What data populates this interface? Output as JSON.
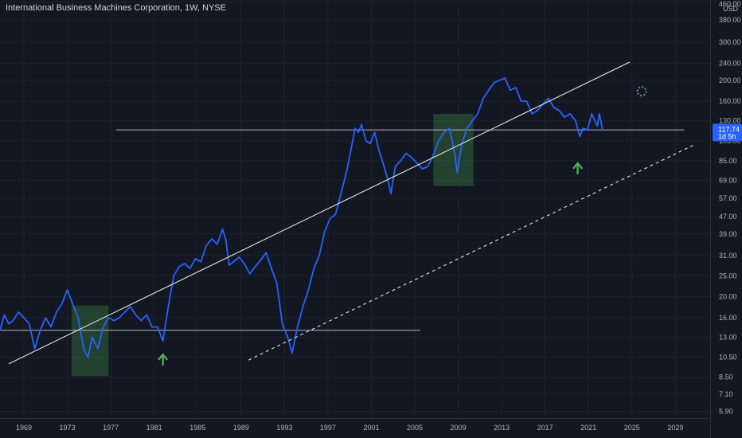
{
  "title": "International Business Machines Corporation, 1W, NYSE",
  "chart_data": {
    "type": "line",
    "scale": "log",
    "currency": "USD",
    "last_price": "117.74",
    "countdown": "1d 5h",
    "y_ticks": [
      "460.00",
      "380.00",
      "300.00",
      "240.00",
      "200.00",
      "160.00",
      "130.00",
      "105.00",
      "85.00",
      "69.00",
      "57.00",
      "47.00",
      "39.00",
      "31.00",
      "25.00",
      "20.00",
      "16.00",
      "13.00",
      "10.50",
      "8.50",
      "7.10",
      "5.90"
    ],
    "x_ticks": [
      "1969",
      "1973",
      "1977",
      "1981",
      "1985",
      "1989",
      "1993",
      "1997",
      "2001",
      "2005",
      "2009",
      "2013",
      "2017",
      "2021",
      "2025",
      "2029"
    ],
    "ylim": [
      5.5,
      470
    ],
    "xlim": [
      1966.8,
      2032.2
    ],
    "grid": true,
    "series": [
      {
        "color": "#2962ff",
        "x": [
          1966.8,
          1967.2,
          1967.6,
          1968.0,
          1968.5,
          1969.0,
          1969.5,
          1970.0,
          1970.5,
          1971.0,
          1971.5,
          1972.0,
          1972.5,
          1973.0,
          1973.5,
          1974.0,
          1974.5,
          1974.9,
          1975.3,
          1975.8,
          1976.3,
          1976.8,
          1977.3,
          1977.8,
          1978.3,
          1978.8,
          1979.3,
          1979.8,
          1980.3,
          1980.8,
          1981.3,
          1981.8,
          1982.3,
          1982.8,
          1983.3,
          1983.8,
          1984.3,
          1984.8,
          1985.3,
          1985.8,
          1986.3,
          1986.8,
          1987.3,
          1987.6,
          1987.9,
          1988.3,
          1988.8,
          1989.3,
          1989.8,
          1990.3,
          1990.8,
          1991.3,
          1991.8,
          1992.3,
          1992.8,
          1993.3,
          1993.7,
          1994.2,
          1994.7,
          1995.2,
          1995.7,
          1996.2,
          1996.7,
          1997.2,
          1997.7,
          1998.2,
          1998.7,
          1999.2,
          1999.5,
          1999.8,
          2000.1,
          2000.5,
          2000.9,
          2001.3,
          2001.7,
          2002.1,
          2002.5,
          2002.8,
          2003.2,
          2003.7,
          2004.2,
          2004.7,
          2005.2,
          2005.7,
          2006.2,
          2006.7,
          2007.2,
          2007.7,
          2008.2,
          2008.7,
          2008.9,
          2009.3,
          2009.8,
          2010.3,
          2010.8,
          2011.3,
          2011.8,
          2012.3,
          2012.8,
          2013.3,
          2013.8,
          2014.3,
          2014.8,
          2015.3,
          2015.8,
          2016.3,
          2016.8,
          2017.3,
          2017.8,
          2018.3,
          2018.8,
          2019.3,
          2019.8,
          2020.2,
          2020.5,
          2020.9,
          2021.3,
          2021.8,
          2022.0,
          2022.3
        ],
        "values": [
          14.0,
          16.5,
          15.0,
          15.5,
          17.0,
          16.0,
          15.0,
          11.5,
          14.0,
          16.0,
          14.5,
          17.0,
          18.5,
          21.5,
          18.5,
          16.0,
          11.5,
          10.5,
          13.0,
          11.5,
          14.5,
          16.0,
          15.5,
          16.0,
          17.0,
          18.0,
          16.5,
          15.5,
          16.5,
          14.5,
          14.5,
          12.5,
          18.0,
          25.0,
          27.5,
          28.5,
          27.0,
          30.0,
          29.0,
          34.5,
          37.0,
          35.0,
          41.0,
          36.5,
          28.0,
          29.0,
          30.5,
          28.5,
          25.5,
          27.5,
          29.5,
          32.0,
          27.0,
          23.0,
          15.0,
          13.0,
          11.0,
          14.5,
          18.0,
          21.5,
          27.0,
          31.0,
          40.0,
          46.0,
          48.0,
          60.0,
          75.0,
          100.0,
          120.0,
          115.0,
          125.0,
          105.0,
          102.0,
          115.0,
          95.0,
          82.0,
          70.0,
          60.0,
          80.0,
          85.0,
          92.0,
          88.0,
          83.0,
          78.0,
          80.0,
          90.0,
          105.0,
          115.0,
          120.0,
          90.0,
          75.0,
          100.0,
          120.0,
          130.0,
          140.0,
          165.0,
          180.0,
          195.0,
          200.0,
          205.0,
          180.0,
          185.0,
          160.0,
          160.0,
          140.0,
          145.0,
          155.0,
          165.0,
          150.0,
          145.0,
          135.0,
          140.0,
          130.0,
          110.0,
          120.0,
          118.0,
          140.0,
          123.0,
          140.0,
          117.74
        ]
      }
    ],
    "annotations": {
      "trend_lines": [
        {
          "style": "solid",
          "x": [
            1967.6,
            2024.8
          ],
          "y": [
            9.8,
            243.0
          ]
        },
        {
          "style": "dashed",
          "x": [
            1989.7,
            2030.6
          ],
          "y": [
            10.2,
            100.0
          ]
        }
      ],
      "horizontal_lines": [
        {
          "x": [
            1966.8,
            2005.5
          ],
          "y": 14.0
        },
        {
          "x": [
            1977.5,
            2029.8
          ],
          "y": 118.0
        }
      ],
      "boxes": [
        {
          "x": [
            1973.4,
            1976.8
          ],
          "y": [
            8.6,
            18.2
          ]
        },
        {
          "x": [
            2006.7,
            2010.4
          ],
          "y": [
            65.0,
            140.0
          ]
        }
      ],
      "arrows": [
        {
          "x": 1981.8,
          "y": 10.2
        },
        {
          "x": 2020.0,
          "y": 78.0
        }
      ],
      "spinner": {
        "x": 2025.9,
        "y": 178.0
      }
    }
  }
}
